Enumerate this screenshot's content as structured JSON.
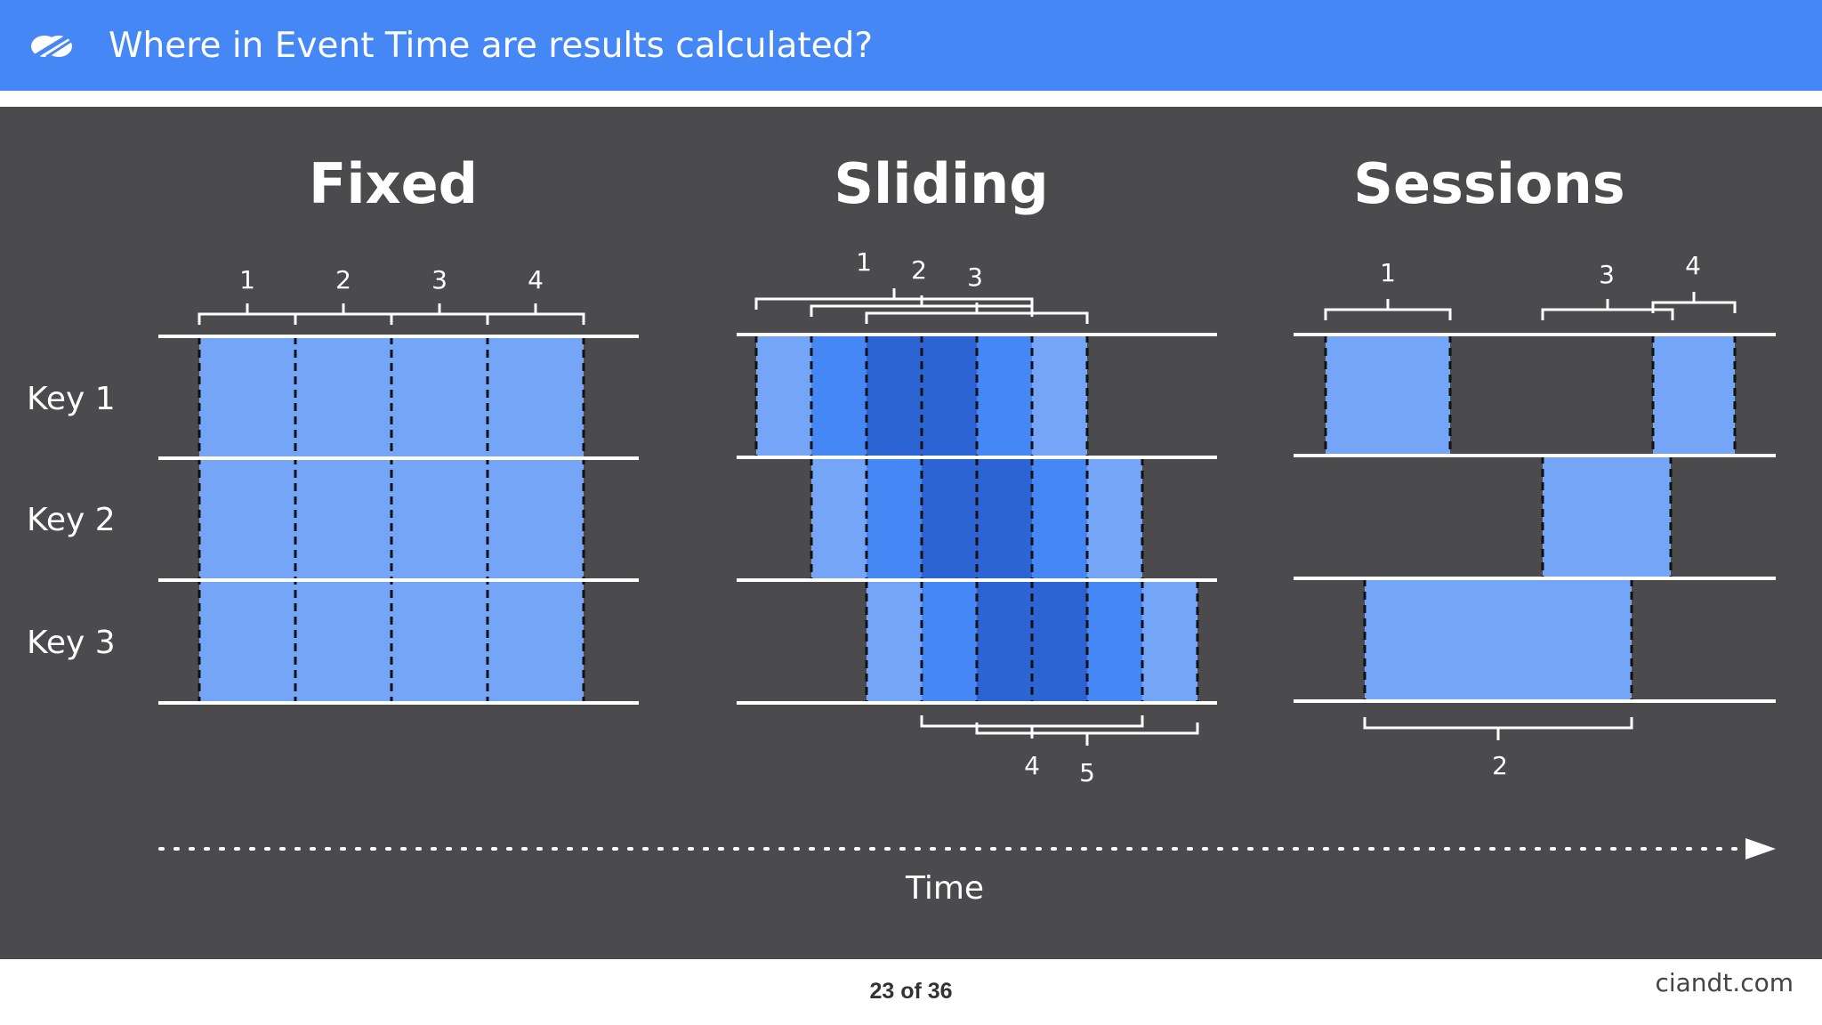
{
  "header": {
    "title": "Where in Event Time are results calculated?",
    "logo_icon": "infinity-leaf-logo-icon",
    "background_color": "#4487f5"
  },
  "diagram": {
    "colors": {
      "light": "#74a5f7",
      "medium": "#4487f5",
      "dark": "#2d64d4",
      "background": "#4b4a4c",
      "lines": "#ffffff"
    },
    "row_labels": [
      "Key 1",
      "Key 2",
      "Key 3"
    ],
    "axis_label": "Time",
    "panels": [
      {
        "title": "Fixed",
        "window_labels": [
          "1",
          "2",
          "3",
          "4"
        ]
      },
      {
        "title": "Sliding",
        "window_labels_top": [
          "1",
          "2",
          "3"
        ],
        "window_labels_bottom": [
          "4",
          "5"
        ]
      },
      {
        "title": "Sessions",
        "window_labels_top": [
          "1",
          "3",
          "4"
        ],
        "window_labels_bottom": [
          "2"
        ]
      }
    ]
  },
  "footer": {
    "page": "23 of 36",
    "site": "ciandt.com"
  }
}
